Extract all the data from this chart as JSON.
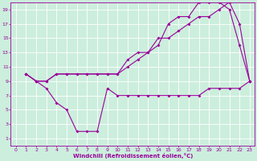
{
  "xlabel": "Windchill (Refroidissement éolien,°C)",
  "bg_color": "#cceedd",
  "line_color": "#990099",
  "xlim": [
    -0.5,
    23.5
  ],
  "ylim": [
    0,
    20
  ],
  "xticks": [
    0,
    1,
    2,
    3,
    4,
    5,
    6,
    7,
    8,
    9,
    10,
    11,
    12,
    13,
    14,
    15,
    16,
    17,
    18,
    19,
    20,
    21,
    22,
    23
  ],
  "yticks": [
    1,
    3,
    5,
    7,
    9,
    11,
    13,
    15,
    17,
    19
  ],
  "line1_x": [
    1,
    2,
    3,
    4,
    5,
    6,
    7,
    8,
    9,
    10,
    11,
    12,
    13,
    14,
    15,
    16,
    17,
    18,
    19,
    20,
    21,
    22,
    23
  ],
  "line1_y": [
    10,
    9,
    8,
    6,
    5,
    2,
    2,
    2,
    8,
    7,
    7,
    7,
    7,
    7,
    7,
    7,
    7,
    7,
    8,
    8,
    8,
    8,
    9
  ],
  "line2_x": [
    1,
    2,
    3,
    4,
    5,
    6,
    7,
    8,
    9,
    10,
    11,
    12,
    13,
    14,
    15,
    16,
    17,
    18,
    19,
    20,
    21,
    22,
    23
  ],
  "line2_y": [
    10,
    9,
    9,
    10,
    10,
    10,
    10,
    10,
    10,
    10,
    11,
    12,
    13,
    14,
    17,
    18,
    18,
    20,
    20,
    20,
    19,
    14,
    9
  ],
  "line3_x": [
    1,
    2,
    3,
    4,
    5,
    6,
    7,
    8,
    9,
    10,
    11,
    12,
    13,
    14,
    15,
    16,
    17,
    18,
    19,
    20,
    21,
    22,
    23
  ],
  "line3_y": [
    10,
    9,
    9,
    10,
    10,
    10,
    10,
    10,
    10,
    10,
    12,
    13,
    13,
    15,
    15,
    16,
    17,
    18,
    18,
    19,
    20,
    17,
    9
  ]
}
